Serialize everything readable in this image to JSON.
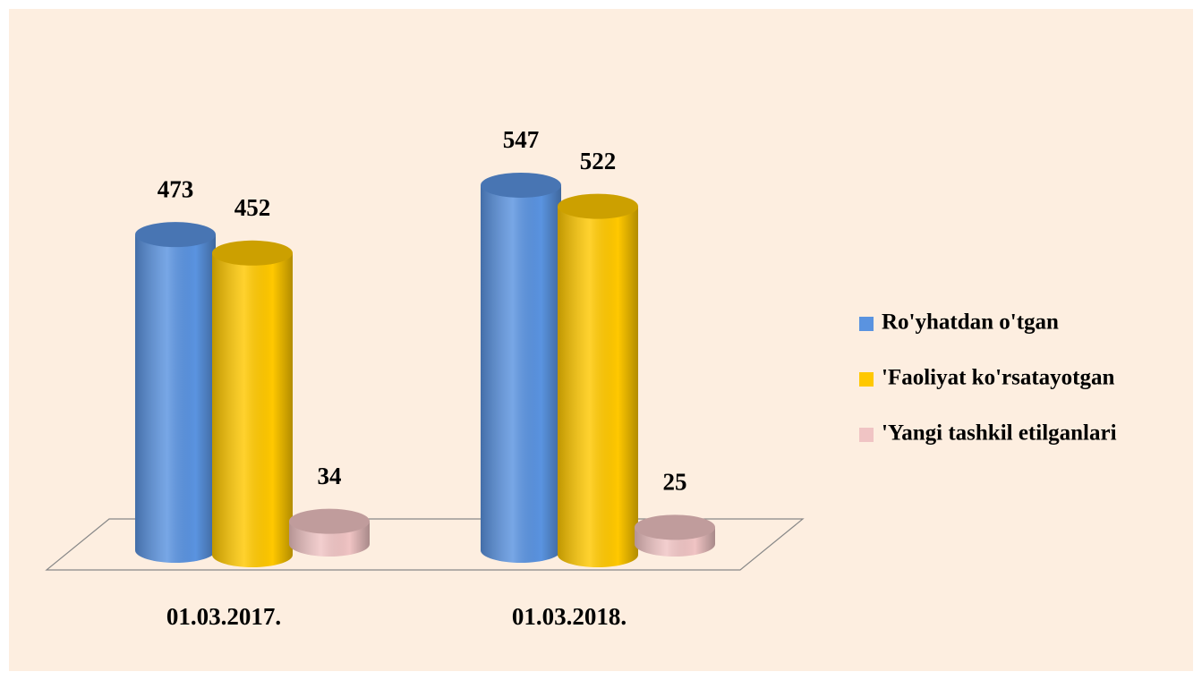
{
  "chart_data": {
    "type": "bar3d-cylinder",
    "categories": [
      "01.03.2017.",
      "01.03.2018."
    ],
    "series": [
      {
        "name": "Ro'yhatdan o'tgan",
        "color": "#5a93e0",
        "values": [
          473,
          547
        ]
      },
      {
        "name": "'Faoliyat ko'rsatayotgan",
        "color": "#ffc800",
        "values": [
          452,
          522
        ]
      },
      {
        "name": "'Yangi tashkil etilganlari",
        "color": "#f0c4c4",
        "values": [
          34,
          25
        ]
      }
    ],
    "legend": "right"
  }
}
